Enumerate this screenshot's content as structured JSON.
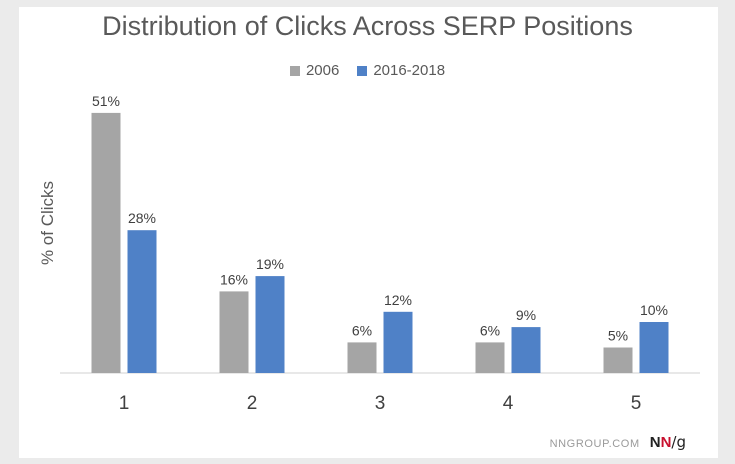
{
  "chart_data": {
    "type": "bar",
    "title": "Distribution of Clicks Across SERP Positions",
    "xlabel": "",
    "ylabel": "% of Clicks",
    "categories": [
      "1",
      "2",
      "3",
      "4",
      "5"
    ],
    "series": [
      {
        "name": "2006",
        "color": "#a5a5a5",
        "values": [
          51,
          16,
          6,
          6,
          5
        ],
        "labels": [
          "51%",
          "16%",
          "6%",
          "6%",
          "5%"
        ]
      },
      {
        "name": "2016-2018",
        "color": "#4f81c7",
        "values": [
          28,
          19,
          12,
          9,
          10
        ],
        "labels": [
          "28%",
          "19%",
          "12%",
          "9%",
          "10%"
        ]
      }
    ],
    "ylim": [
      0,
      60
    ],
    "grid": false,
    "legend_position": "top"
  },
  "footer": {
    "site": "NNGROUP.COM",
    "logo_n1": "N",
    "logo_n2": "N",
    "logo_g": "/g"
  }
}
